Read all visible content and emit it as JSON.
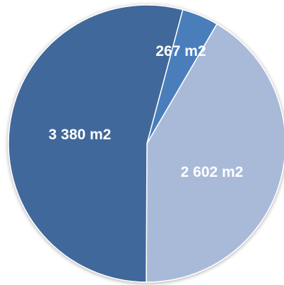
{
  "chart_data": {
    "type": "pie",
    "categories": [
      "",
      "",
      ""
    ],
    "values": [
      267,
      2602,
      3380
    ],
    "unit": "m2",
    "labels": [
      "267 m2",
      "2 602 m2",
      "3 380 m2"
    ],
    "colors": [
      "#4a7ebb",
      "#a9bad9",
      "#41689a"
    ],
    "start_angle_deg": 15,
    "legend": "none"
  }
}
